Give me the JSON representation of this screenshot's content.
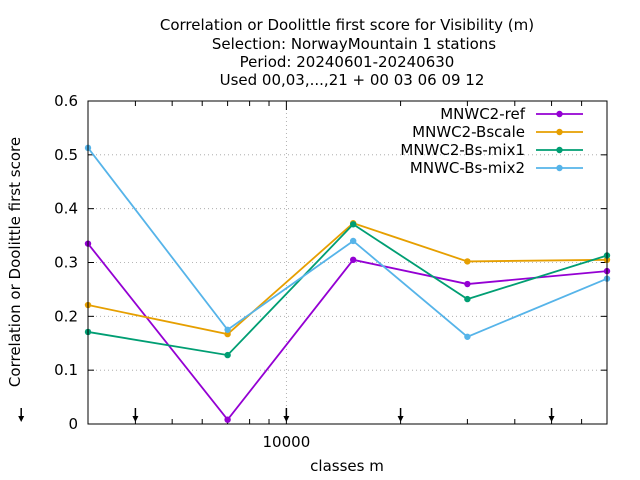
{
  "chart_data": {
    "type": "line",
    "title_lines": [
      "Correlation or Doolittle first score  for Visibility (m)",
      "Selection: NorwayMountain      1 stations",
      "Period: 20240601-20240630",
      "Used 00,03,...,21 + 00 03 06 09 12"
    ],
    "xlabel": "classes m",
    "ylabel": "Correlation or Doolittle first score",
    "x_scale": "log",
    "xlim": [
      3000,
      70000
    ],
    "ylim": [
      0,
      0.6
    ],
    "x_tick_labels": [
      "10000"
    ],
    "y_ticks": [
      0,
      0.1,
      0.2,
      0.3,
      0.4,
      0.5,
      0.6
    ],
    "y_tick_labels": [
      "0",
      "0.1",
      "0.2",
      "0.3",
      "0.4",
      "0.5",
      "0.6"
    ],
    "grid": true,
    "legend_position": "top-right",
    "x": [
      3000,
      7000,
      15000,
      30000,
      70000
    ],
    "series": [
      {
        "name": "MNWC2-ref",
        "color": "#9400d3",
        "values": [
          0.335,
          0.008,
          0.305,
          0.26,
          0.284
        ]
      },
      {
        "name": "MNWC2-Bscale",
        "color": "#e69f00",
        "values": [
          0.221,
          0.167,
          0.373,
          0.302,
          0.305
        ]
      },
      {
        "name": "MNWC2-Bs-mix1",
        "color": "#009e73",
        "values": [
          0.171,
          0.128,
          0.371,
          0.232,
          0.313
        ]
      },
      {
        "name": "MNWC-Bs-mix2",
        "color": "#56b4e9",
        "values": [
          0.513,
          0.175,
          0.34,
          0.162,
          0.27
        ]
      }
    ],
    "arrow_markers": [
      2000,
      4000,
      10000,
      20000,
      50000
    ]
  }
}
